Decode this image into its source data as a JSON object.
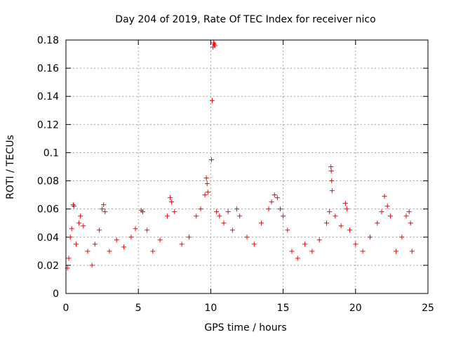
{
  "chart_data": {
    "type": "scatter",
    "title": "Day 204 of 2019, Rate Of TEC Index for receiver nico",
    "xlabel": "GPS time / hours",
    "ylabel": "ROTI / TECUs",
    "xlim": [
      0,
      25
    ],
    "ylim": [
      0,
      0.18
    ],
    "x_ticks": [
      0,
      5,
      10,
      15,
      20,
      25
    ],
    "x_tick_labels": [
      "0",
      "5",
      "10",
      "15",
      "20",
      "25"
    ],
    "y_ticks": [
      0,
      0.02,
      0.04,
      0.06,
      0.08,
      0.1,
      0.12,
      0.14,
      0.16,
      0.18
    ],
    "y_tick_labels": [
      "0",
      "0.02",
      "0.04",
      "0.06",
      "0.08",
      "0.1",
      "0.12",
      "0.14",
      "0.16",
      "0.18"
    ],
    "grid": true,
    "marker": "+",
    "marker_color": "#ff0000",
    "series": [
      {
        "name": "ROTI",
        "points": [
          [
            0.1,
            0.018
          ],
          [
            0.2,
            0.025
          ],
          [
            0.3,
            0.04
          ],
          [
            0.4,
            0.046
          ],
          [
            0.5,
            0.063
          ],
          [
            0.55,
            0.062
          ],
          [
            0.7,
            0.035
          ],
          [
            0.9,
            0.05
          ],
          [
            1.0,
            0.055
          ],
          [
            1.2,
            0.048
          ],
          [
            1.5,
            0.03
          ],
          [
            1.8,
            0.02
          ],
          [
            2.0,
            0.035
          ],
          [
            2.3,
            0.045
          ],
          [
            2.5,
            0.06
          ],
          [
            2.6,
            0.063
          ],
          [
            2.7,
            0.058
          ],
          [
            3.0,
            0.03
          ],
          [
            3.5,
            0.038
          ],
          [
            4.0,
            0.033
          ],
          [
            4.5,
            0.04
          ],
          [
            4.8,
            0.046
          ],
          [
            5.2,
            0.059
          ],
          [
            5.3,
            0.058
          ],
          [
            5.6,
            0.045
          ],
          [
            6.0,
            0.03
          ],
          [
            6.5,
            0.038
          ],
          [
            7.0,
            0.055
          ],
          [
            7.2,
            0.068
          ],
          [
            7.3,
            0.065
          ],
          [
            7.5,
            0.058
          ],
          [
            8.0,
            0.035
          ],
          [
            8.5,
            0.04
          ],
          [
            9.0,
            0.055
          ],
          [
            9.3,
            0.06
          ],
          [
            9.6,
            0.07
          ],
          [
            9.7,
            0.082
          ],
          [
            9.75,
            0.078
          ],
          [
            9.8,
            0.072
          ],
          [
            10.05,
            0.095
          ],
          [
            10.1,
            0.137
          ],
          [
            10.15,
            0.175
          ],
          [
            10.2,
            0.178
          ],
          [
            10.25,
            0.177
          ],
          [
            10.3,
            0.176
          ],
          [
            10.4,
            0.058
          ],
          [
            10.6,
            0.055
          ],
          [
            10.9,
            0.05
          ],
          [
            11.2,
            0.058
          ],
          [
            11.5,
            0.045
          ],
          [
            11.8,
            0.06
          ],
          [
            12.0,
            0.055
          ],
          [
            12.5,
            0.04
          ],
          [
            13.0,
            0.035
          ],
          [
            13.5,
            0.05
          ],
          [
            14.0,
            0.06
          ],
          [
            14.2,
            0.065
          ],
          [
            14.4,
            0.07
          ],
          [
            14.6,
            0.068
          ],
          [
            14.8,
            0.06
          ],
          [
            15.0,
            0.055
          ],
          [
            15.3,
            0.045
          ],
          [
            15.6,
            0.03
          ],
          [
            16.0,
            0.025
          ],
          [
            16.5,
            0.035
          ],
          [
            17.0,
            0.03
          ],
          [
            17.5,
            0.038
          ],
          [
            18.0,
            0.05
          ],
          [
            18.2,
            0.058
          ],
          [
            18.3,
            0.09
          ],
          [
            18.32,
            0.087
          ],
          [
            18.35,
            0.08
          ],
          [
            18.38,
            0.073
          ],
          [
            18.6,
            0.055
          ],
          [
            19.0,
            0.048
          ],
          [
            19.3,
            0.064
          ],
          [
            19.4,
            0.06
          ],
          [
            19.6,
            0.045
          ],
          [
            20.0,
            0.035
          ],
          [
            20.5,
            0.03
          ],
          [
            21.0,
            0.04
          ],
          [
            21.5,
            0.05
          ],
          [
            21.8,
            0.058
          ],
          [
            22.0,
            0.069
          ],
          [
            22.2,
            0.062
          ],
          [
            22.4,
            0.055
          ],
          [
            22.8,
            0.03
          ],
          [
            23.2,
            0.04
          ],
          [
            23.5,
            0.055
          ],
          [
            23.7,
            0.058
          ],
          [
            23.8,
            0.05
          ],
          [
            23.9,
            0.03
          ]
        ]
      }
    ]
  }
}
